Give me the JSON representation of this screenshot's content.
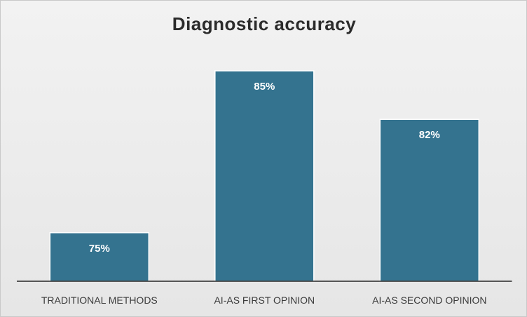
{
  "chart_data": {
    "type": "bar",
    "title": "Diagnostic accuracy",
    "categories": [
      "TRADITIONAL METHODS",
      "AI-AS FIRST OPINION",
      "AI-AS SECOND OPINION"
    ],
    "values": [
      75,
      85,
      82
    ],
    "data_labels": [
      "75%",
      "85%",
      "82%"
    ],
    "ylim": [
      72,
      90
    ],
    "grid": false,
    "legend": "none",
    "colors": {
      "bar": "#34738f",
      "bar_outline": "#ffffff",
      "background": "#ececec",
      "title": "#2b2b2b",
      "tick_label": "#3a3a3a"
    }
  }
}
